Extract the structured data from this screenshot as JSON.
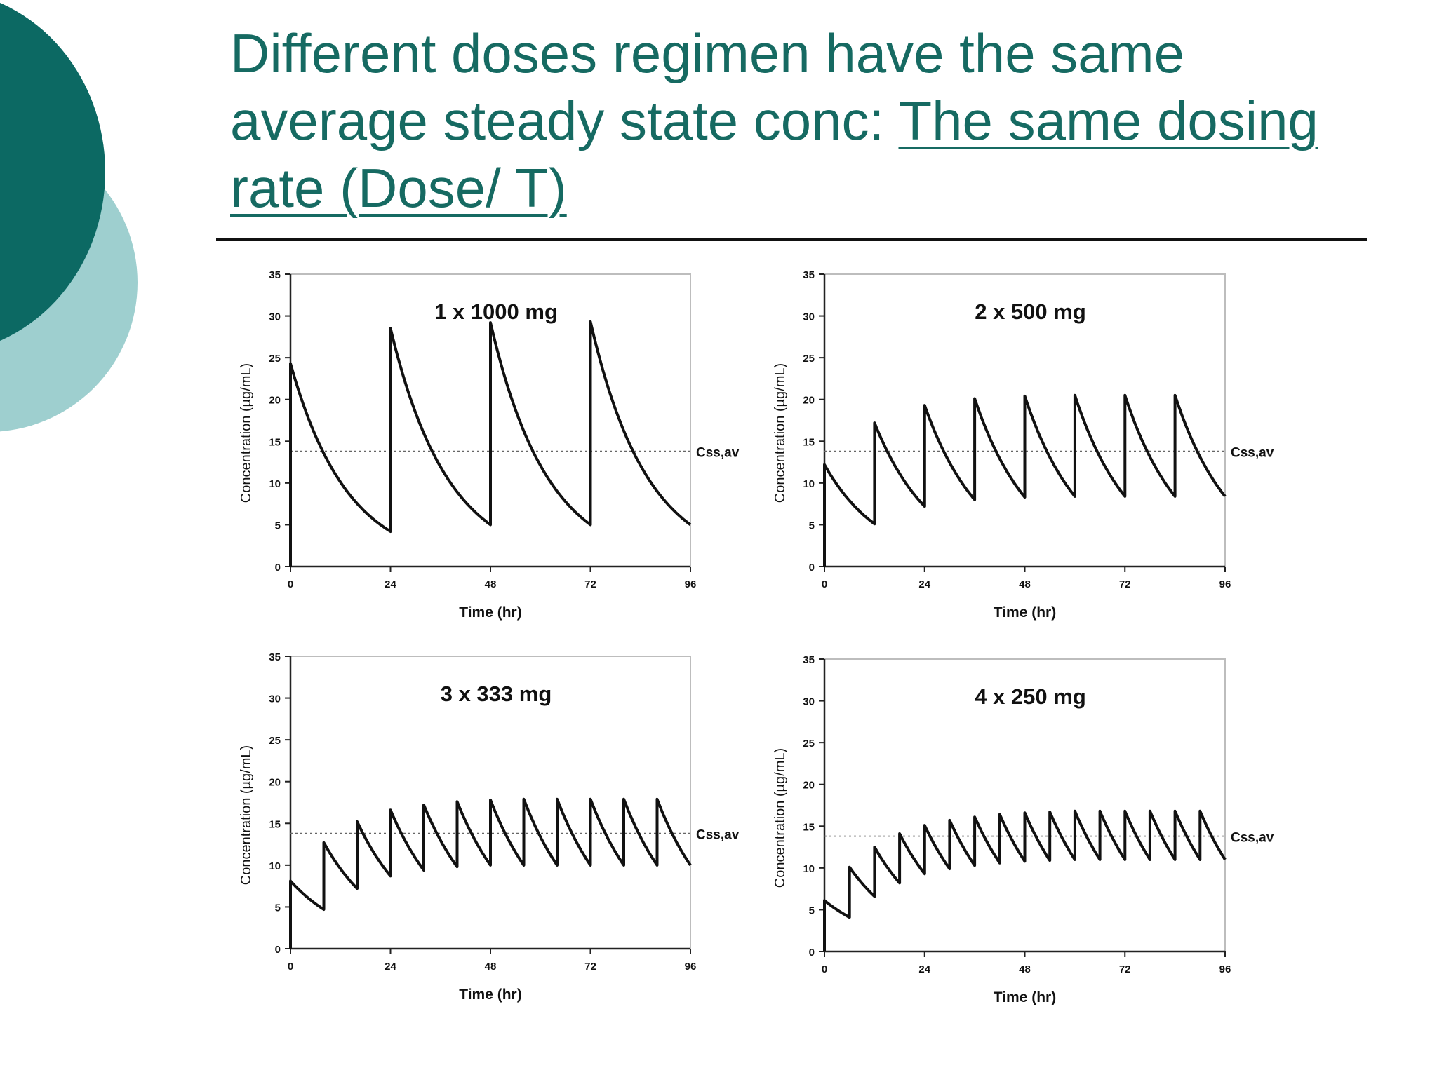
{
  "slide": {
    "title_part1": "Different doses regimen have the same average steady state conc: ",
    "title_part2": "The same dosing rate (Dose/ T)",
    "accent_dark": "#0c6963",
    "accent_light": "#9ecfcf",
    "title_color": "#166a62"
  },
  "chart_data": [
    {
      "type": "line",
      "title": "1 x 1000 mg",
      "xlabel": "Time (hr)",
      "ylabel": "Concentration (µg/mL)",
      "xlim": [
        0,
        96
      ],
      "ylim": [
        0,
        35
      ],
      "xticks": [
        0,
        24,
        48,
        72,
        96
      ],
      "yticks": [
        0,
        5,
        10,
        15,
        20,
        25,
        30,
        35
      ],
      "reference_line": {
        "label": "Css,av",
        "y": 13.8
      },
      "x": [
        0,
        0,
        24,
        24,
        48,
        48,
        72,
        72,
        96
      ],
      "y": [
        0,
        24.3,
        4.2,
        28.5,
        5.0,
        29.2,
        5.0,
        29.3,
        5.0
      ],
      "decay": "exponential between doses"
    },
    {
      "type": "line",
      "title": "2 x 500 mg",
      "xlabel": "Time (hr)",
      "ylabel": "Concentration (µg/mL)",
      "xlim": [
        0,
        96
      ],
      "ylim": [
        0,
        35
      ],
      "xticks": [
        0,
        24,
        48,
        72,
        96
      ],
      "yticks": [
        0,
        5,
        10,
        15,
        20,
        25,
        30,
        35
      ],
      "reference_line": {
        "label": "Css,av",
        "y": 13.8
      },
      "x": [
        0,
        0,
        12,
        12,
        24,
        24,
        36,
        36,
        48,
        48,
        60,
        60,
        72,
        72,
        84,
        84,
        96
      ],
      "y": [
        0,
        12.2,
        5.1,
        17.2,
        7.2,
        19.3,
        8.0,
        20.1,
        8.3,
        20.4,
        8.4,
        20.5,
        8.4,
        20.5,
        8.4,
        20.5,
        8.4
      ],
      "decay": "exponential between doses"
    },
    {
      "type": "line",
      "title": "3 x 333 mg",
      "xlabel": "Time (hr)",
      "ylabel": "Concentration (µg/mL)",
      "xlim": [
        0,
        96
      ],
      "ylim": [
        0,
        35
      ],
      "xticks": [
        0,
        24,
        48,
        72,
        96
      ],
      "yticks": [
        0,
        5,
        10,
        15,
        20,
        25,
        30,
        35
      ],
      "reference_line": {
        "label": "Css,av",
        "y": 13.8
      },
      "x": [
        0,
        0,
        8,
        8,
        16,
        16,
        24,
        24,
        32,
        32,
        40,
        40,
        48,
        48,
        56,
        56,
        64,
        64,
        72,
        72,
        80,
        80,
        88,
        88,
        96
      ],
      "y": [
        0,
        8.1,
        4.7,
        12.7,
        7.2,
        15.2,
        8.7,
        16.6,
        9.4,
        17.2,
        9.8,
        17.6,
        10.0,
        17.8,
        10.0,
        17.9,
        10.0,
        17.9,
        10.0,
        17.9,
        10.0,
        17.9,
        10.0,
        17.9,
        10.0
      ],
      "decay": "exponential between doses"
    },
    {
      "type": "line",
      "title": "4 x 250 mg",
      "xlabel": "Time (hr)",
      "ylabel": "Concentration (µg/mL)",
      "xlim": [
        0,
        96
      ],
      "ylim": [
        0,
        35
      ],
      "xticks": [
        0,
        24,
        48,
        72,
        96
      ],
      "yticks": [
        0,
        5,
        10,
        15,
        20,
        25,
        30,
        35
      ],
      "reference_line": {
        "label": "Css,av",
        "y": 13.8
      },
      "x": [
        0,
        0,
        6,
        6,
        12,
        12,
        18,
        18,
        24,
        24,
        30,
        30,
        36,
        36,
        42,
        42,
        48,
        48,
        54,
        54,
        60,
        60,
        66,
        66,
        72,
        72,
        78,
        78,
        84,
        84,
        90,
        90,
        96
      ],
      "y": [
        0,
        6.1,
        4.1,
        10.1,
        6.6,
        12.5,
        8.2,
        14.1,
        9.3,
        15.1,
        9.9,
        15.7,
        10.3,
        16.1,
        10.6,
        16.4,
        10.8,
        16.6,
        10.9,
        16.7,
        11.0,
        16.8,
        11.0,
        16.8,
        11.0,
        16.8,
        11.0,
        16.8,
        11.0,
        16.8,
        11.0,
        16.8,
        11.0
      ],
      "decay": "exponential between doses"
    }
  ]
}
